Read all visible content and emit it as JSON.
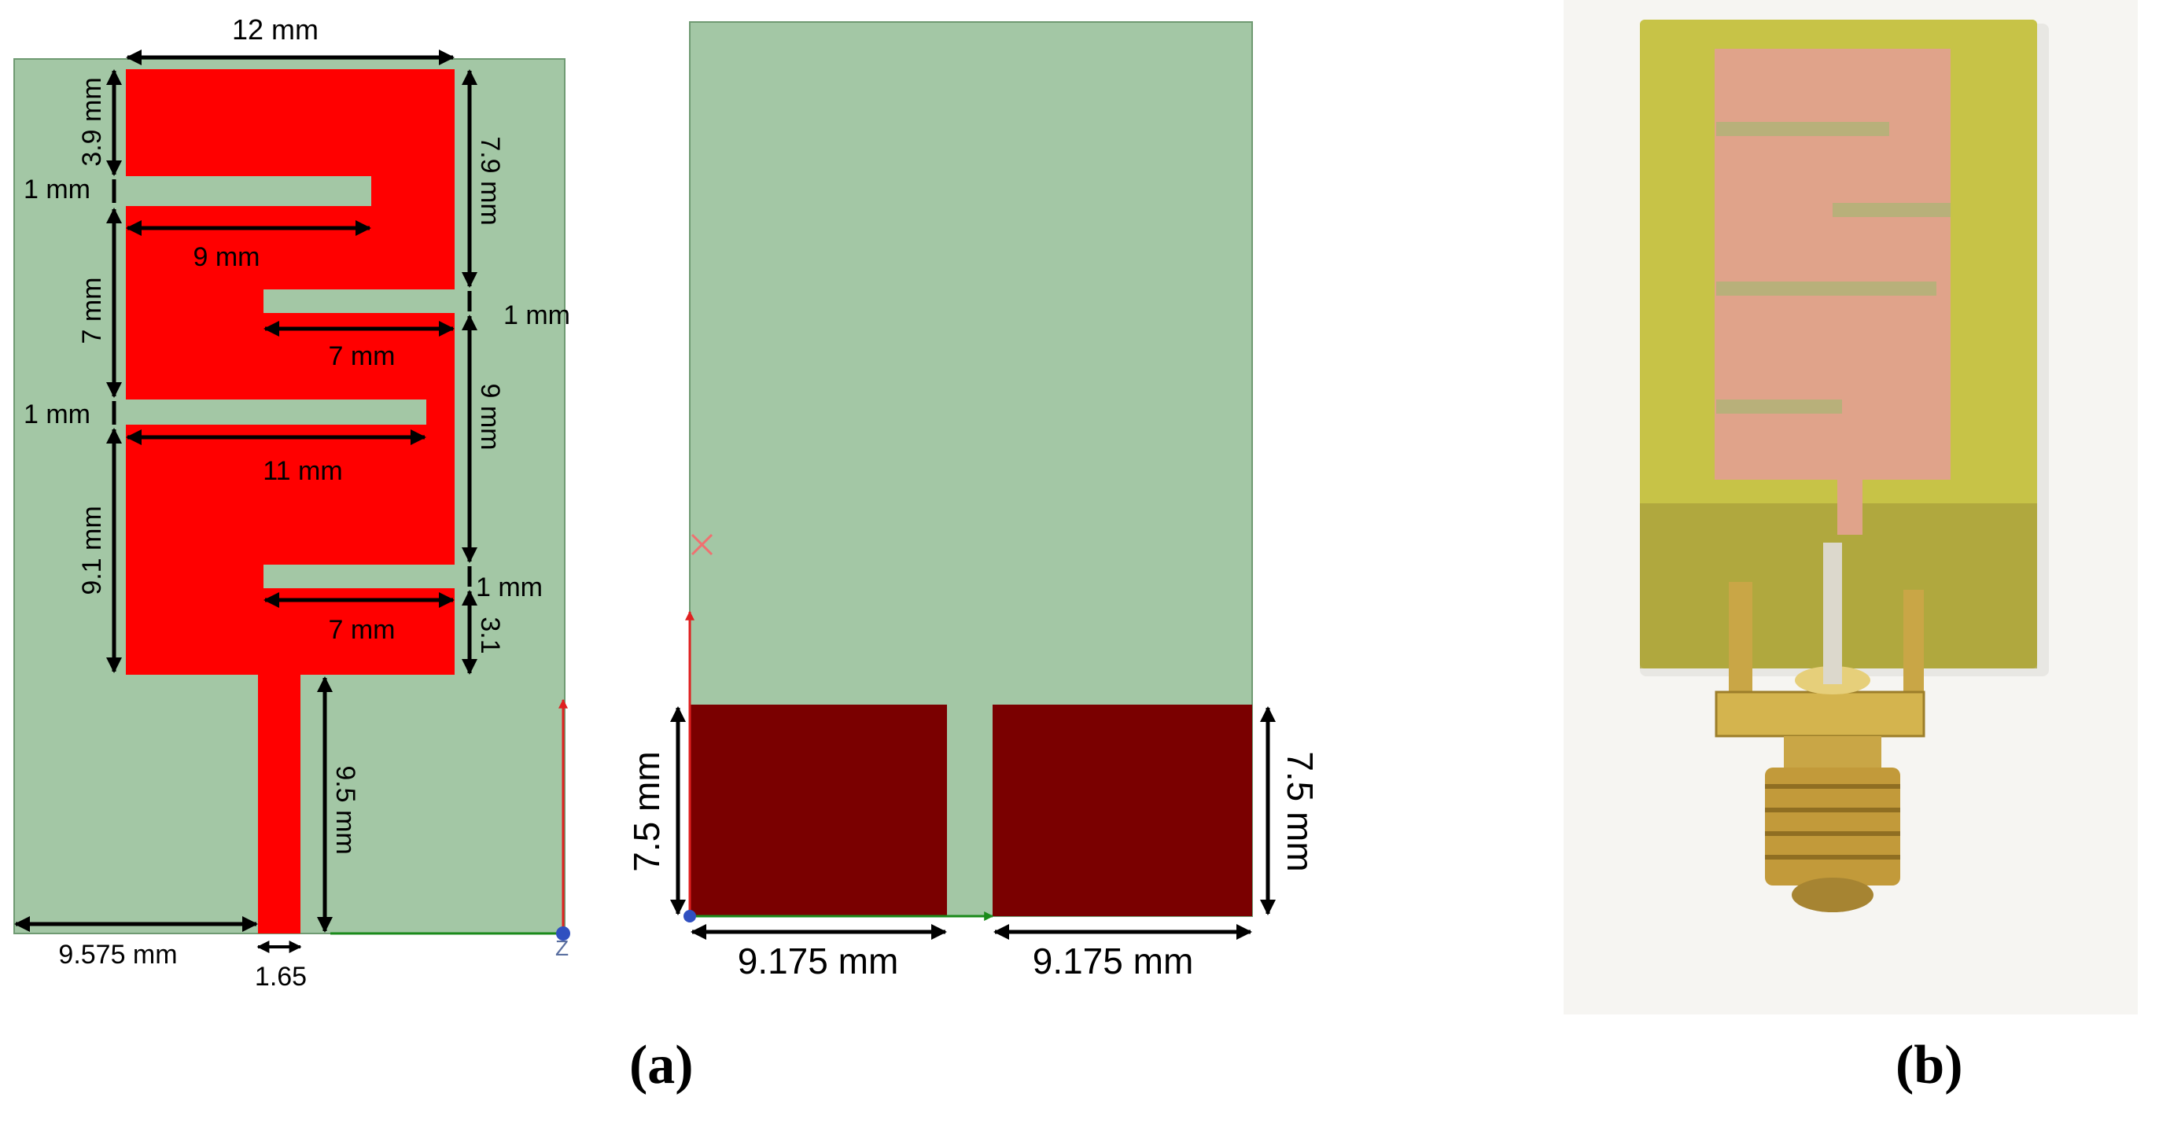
{
  "front": {
    "width_label": "12 mm",
    "left_labels": {
      "top_gap": "3.9 mm",
      "slot1_w": "1 mm",
      "mid_gap": "7 mm",
      "slot3_w": "1 mm",
      "bottom_gap": "9.1 mm"
    },
    "right_labels": {
      "top_gap": "7.9 mm",
      "slot2_w": "1 mm",
      "mid_gap": "9 mm",
      "slot4_w": "1 mm",
      "bottom_gap": "3.1"
    },
    "slot_lengths": [
      "9 mm",
      "7 mm",
      "11 mm",
      "7 mm"
    ],
    "feed_length": "9.5 mm",
    "offset_label": "9.575 mm",
    "feed_width": "1.65",
    "axis_label": "Z"
  },
  "back": {
    "left_width": "9.175 mm",
    "right_width": "9.175 mm",
    "left_height": "7.5 mm",
    "right_height": "7.5 mm"
  },
  "captions": {
    "a": "(a)",
    "b": "(b)"
  },
  "colors": {
    "substrate": "#a3c7a5",
    "patch": "#ff0000",
    "ground": "#7a0000",
    "fr4": "#c7c347",
    "copper": "#e0a38a",
    "connector": "#c9a646"
  }
}
